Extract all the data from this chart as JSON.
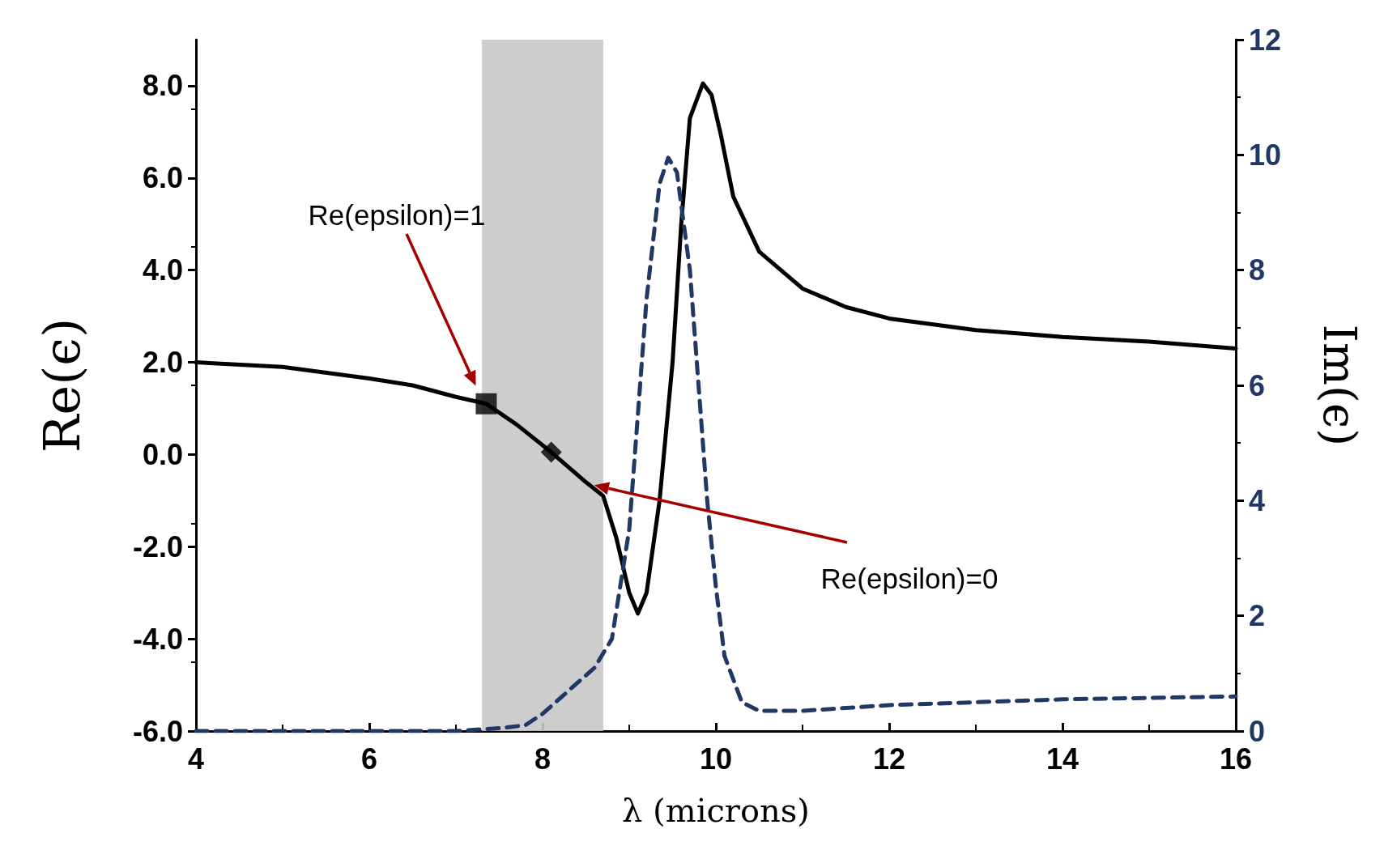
{
  "chart_data": {
    "type": "line",
    "xlabel": "λ (microns)",
    "ylabel": "Re(ϵ)",
    "y2label": "Im(ϵ)",
    "xlim": [
      4,
      16
    ],
    "xticks": [
      4,
      6,
      8,
      10,
      12,
      14,
      16
    ],
    "ylim": [
      -6,
      9
    ],
    "yticks": [
      {
        "value": -6,
        "label": "-6.0"
      },
      {
        "value": -4,
        "label": "-4.0"
      },
      {
        "value": -2,
        "label": "-2.0"
      },
      {
        "value": 0,
        "label": "0.0"
      },
      {
        "value": 2,
        "label": "2.0"
      },
      {
        "value": 4,
        "label": "4.0"
      },
      {
        "value": 6,
        "label": "6.0"
      },
      {
        "value": 8,
        "label": "8.0"
      }
    ],
    "y2lim": [
      0,
      12
    ],
    "y2ticks": [
      0,
      2,
      4,
      6,
      8,
      10,
      12
    ],
    "bands": [
      {
        "axis": "x",
        "from": 7.3,
        "to": 8.7,
        "color": "#c8c8c8"
      }
    ],
    "annotations": [
      "Re(epsilon)=1",
      "Re(epsilon)=0"
    ],
    "series": [
      {
        "color": "#000000",
        "line_style": "solid",
        "marker": "none",
        "x": [
          4,
          5,
          6,
          6.5,
          7,
          7.35,
          7.7,
          8.1,
          8.5,
          8.7,
          8.85,
          9.0,
          9.1,
          9.2,
          9.35,
          9.5,
          9.6,
          9.7,
          9.85,
          9.95,
          10.05,
          10.2,
          10.5,
          11,
          11.5,
          12,
          13,
          14,
          15,
          16
        ],
        "values": [
          2.0,
          1.9,
          1.65,
          1.5,
          1.25,
          1.1,
          0.65,
          0.05,
          -0.6,
          -0.9,
          -1.8,
          -3.0,
          -3.45,
          -3.0,
          -1.0,
          2.0,
          5.0,
          7.3,
          8.05,
          7.8,
          7.0,
          5.6,
          4.4,
          3.6,
          3.2,
          2.95,
          2.7,
          2.55,
          2.45,
          2.3
        ]
      },
      {
        "axis": "y2",
        "color": "#1f3864",
        "line_style": "dashed",
        "marker": "none",
        "x": [
          4,
          7,
          7.5,
          7.8,
          8.0,
          8.3,
          8.6,
          8.8,
          9.0,
          9.2,
          9.35,
          9.45,
          9.55,
          9.7,
          9.8,
          9.9,
          10.0,
          10.1,
          10.3,
          10.5,
          11,
          12,
          14,
          16
        ],
        "values": [
          0,
          0,
          0.05,
          0.1,
          0.3,
          0.7,
          1.1,
          1.6,
          3.5,
          7.5,
          9.5,
          9.95,
          9.7,
          8.0,
          6.0,
          4.0,
          2.5,
          1.3,
          0.5,
          0.35,
          0.35,
          0.45,
          0.55,
          0.6
        ]
      },
      {
        "type": "scatter",
        "color": "#000000",
        "marker": "square",
        "x": [
          7.35
        ],
        "values": [
          1.1
        ]
      },
      {
        "type": "scatter",
        "color": "#000000",
        "marker": "diamond",
        "x": [
          8.1
        ],
        "values": [
          0.05
        ]
      }
    ]
  }
}
